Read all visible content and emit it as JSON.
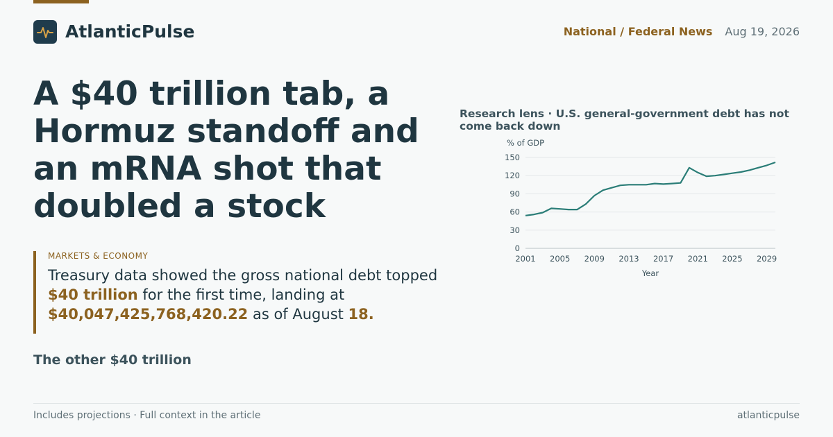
{
  "colors": {
    "accent": "#8c6220",
    "ink": "#1f3640",
    "line": "#2a7d77",
    "muted": "#5e6f76"
  },
  "brand": {
    "name": "AtlanticPulse",
    "logo_icon": "pulse-icon"
  },
  "header": {
    "section": "National / Federal News",
    "date": "Aug 19, 2026"
  },
  "headline": "A $40 trillion tab, a Hormuz standoff and an mRNA shot that doubled a stock",
  "callout": {
    "kicker": "MARKETS & ECONOMY",
    "dek_part1": "Treasury data showed the gross national debt topped ",
    "dek_hl1": "$40 trillion",
    "dek_part2": " for the first time, landing at ",
    "dek_hl2": "$40,047,425,768,420.22",
    "dek_part3": " as of August ",
    "dek_hl3": "18."
  },
  "subhead": "The other $40 trillion",
  "chart_title": "Research lens · U.S. general-government debt has not come back down",
  "chart_data": {
    "type": "line",
    "title": "Research lens · U.S. general-government debt has not come back down",
    "ylabel": "% of GDP",
    "xlabel": "Year",
    "ylim": [
      0,
      150
    ],
    "xlim": [
      2001,
      2030
    ],
    "yticks": [
      0,
      30,
      60,
      90,
      120,
      150
    ],
    "xticks": [
      2001,
      2005,
      2009,
      2013,
      2017,
      2021,
      2025,
      2029
    ],
    "grid": true,
    "series": [
      {
        "x": [
          2001,
          2002,
          2003,
          2004,
          2005,
          2006,
          2007,
          2008,
          2009,
          2010,
          2011,
          2012,
          2013,
          2014,
          2015,
          2016,
          2017,
          2018,
          2019,
          2020,
          2021,
          2022,
          2023,
          2024,
          2025,
          2026,
          2027,
          2028,
          2029,
          2030
        ],
        "y": [
          54,
          56,
          59,
          66,
          65,
          64,
          64,
          73,
          87,
          96,
          100,
          104,
          105,
          105,
          105,
          107,
          106,
          107,
          108,
          133,
          125,
          119,
          120,
          122,
          124,
          126,
          129,
          133,
          137,
          142
        ]
      }
    ]
  },
  "footer": {
    "left": "Includes projections · Full context in the article",
    "right": "atlanticpulse"
  }
}
